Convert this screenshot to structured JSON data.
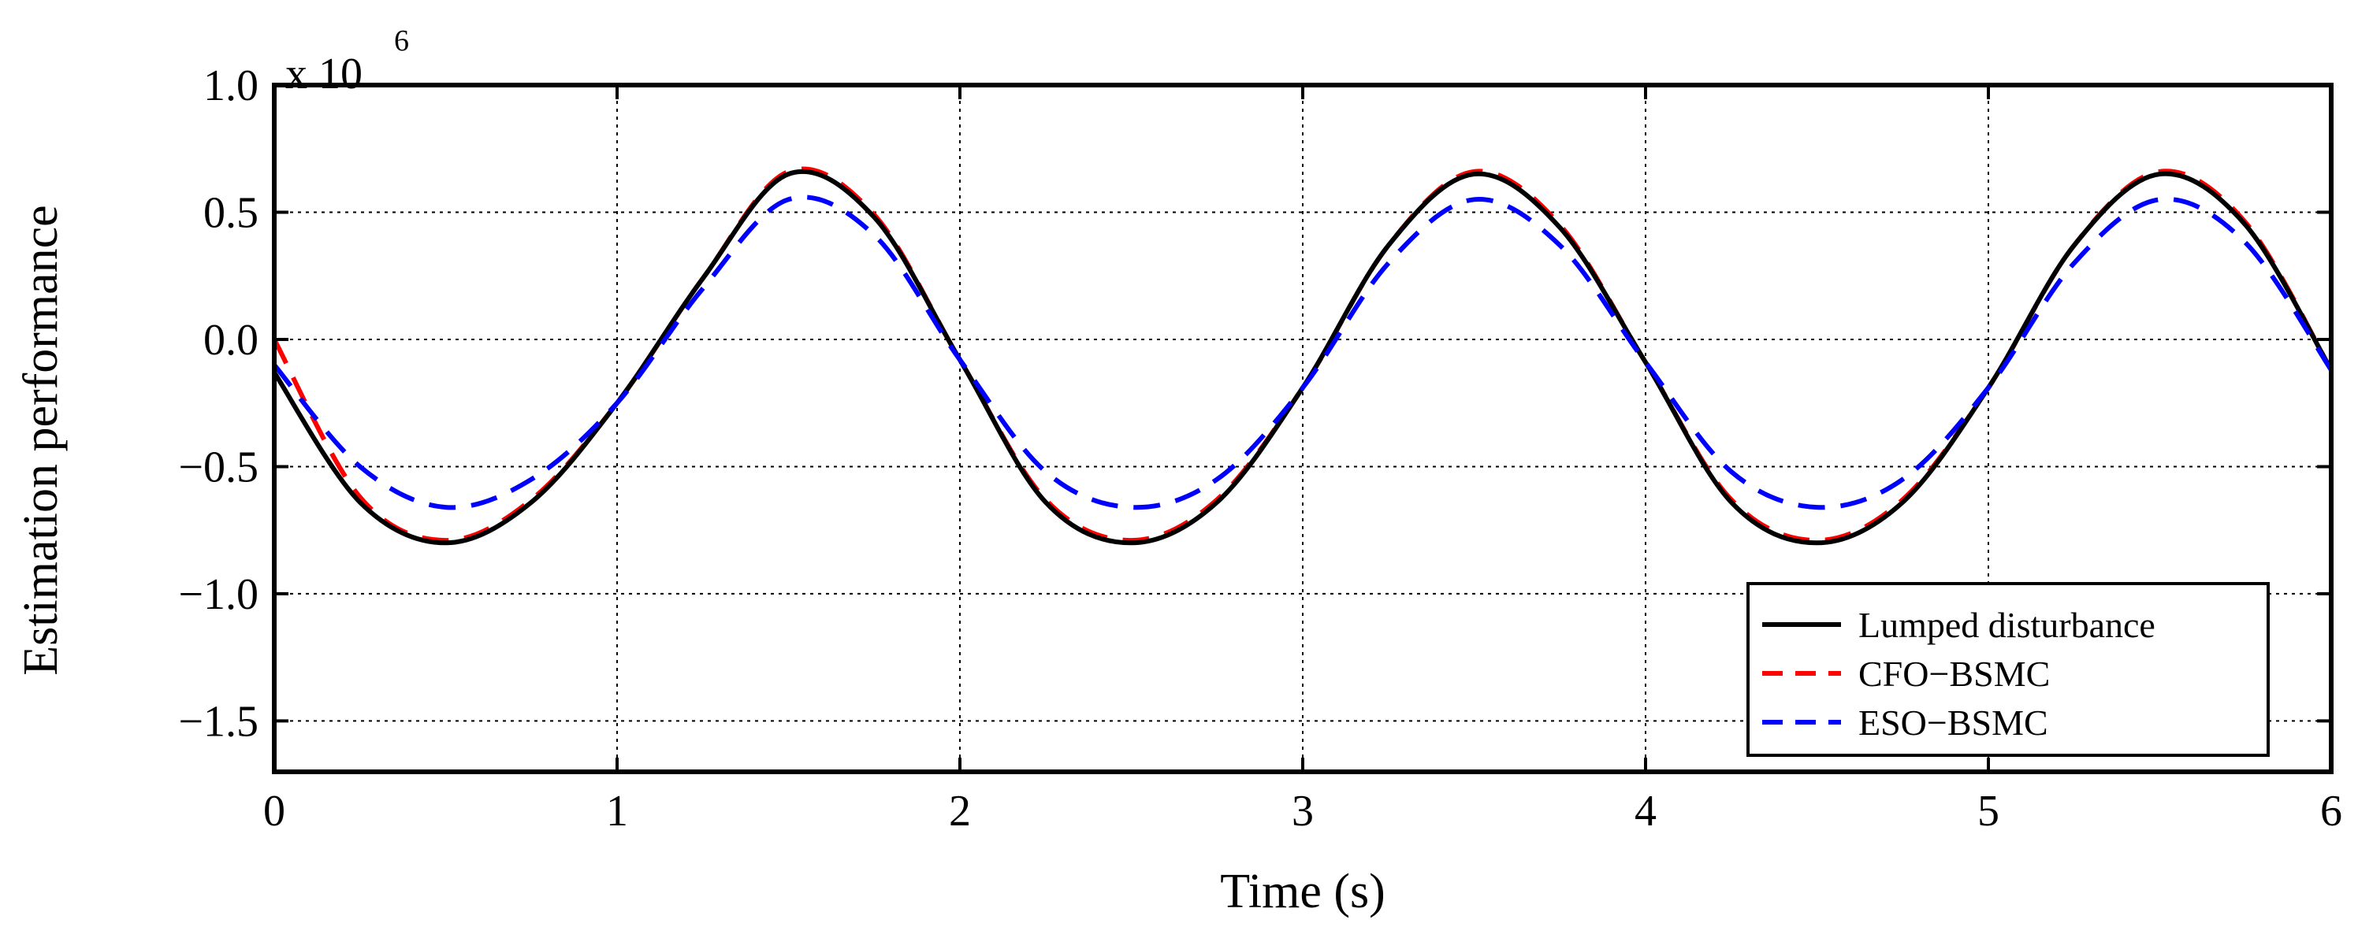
{
  "chart_data": {
    "type": "line",
    "title": "",
    "xlabel": "Time (s)",
    "ylabel": "Estimation performance",
    "y_multiplier": {
      "base": "x 10",
      "exponent": "6"
    },
    "xlim": [
      0,
      6
    ],
    "ylim": [
      -1.7,
      1.0
    ],
    "x_ticks": [
      0,
      1,
      2,
      3,
      4,
      5,
      6
    ],
    "x_tick_labels": [
      "0",
      "1",
      "2",
      "3",
      "4",
      "5",
      "6"
    ],
    "y_ticks": [
      -1.5,
      -1.0,
      -0.5,
      0.0,
      0.5,
      1.0
    ],
    "y_tick_labels": [
      "−1.5",
      "−1.0",
      "−0.5",
      "0.0",
      "0.5",
      "1.0"
    ],
    "grid": true,
    "legend_position": "bottom-right",
    "series": [
      {
        "name": "Lumped disturbance",
        "color": "#000000",
        "dash": "solid",
        "x": [
          0,
          0.25,
          0.5,
          0.75,
          1.0,
          1.25,
          1.5,
          1.75,
          2.0,
          2.25,
          2.5,
          2.75,
          3.0,
          3.25,
          3.5,
          3.75,
          4.0,
          4.25,
          4.5,
          4.75,
          5.0,
          5.25,
          5.5,
          5.75,
          6.0
        ],
        "y": [
          -0.13,
          -0.64,
          -0.8,
          -0.64,
          -0.25,
          0.24,
          0.65,
          0.48,
          -0.08,
          -0.64,
          -0.8,
          -0.64,
          -0.19,
          0.37,
          0.65,
          0.44,
          -0.09,
          -0.64,
          -0.8,
          -0.64,
          -0.19,
          0.37,
          0.65,
          0.45,
          -0.12
        ]
      },
      {
        "name": "CFO−BSMC",
        "color": "#ff0000",
        "dash": "dashed",
        "x": [
          0,
          0.25,
          0.5,
          0.75,
          1.0,
          1.25,
          1.5,
          1.75,
          2.0,
          2.25,
          2.5,
          2.75,
          3.0,
          3.25,
          3.5,
          3.75,
          4.0,
          4.25,
          4.5,
          4.75,
          5.0,
          5.25,
          5.5,
          5.75,
          6.0
        ],
        "y": [
          0.0,
          -0.62,
          -0.79,
          -0.63,
          -0.25,
          0.24,
          0.66,
          0.49,
          -0.08,
          -0.63,
          -0.79,
          -0.63,
          -0.19,
          0.37,
          0.66,
          0.45,
          -0.09,
          -0.63,
          -0.79,
          -0.63,
          -0.19,
          0.37,
          0.66,
          0.46,
          -0.12
        ]
      },
      {
        "name": "ESO−BSMC",
        "color": "#0000ff",
        "dash": "dashed",
        "x": [
          0,
          0.25,
          0.5,
          0.75,
          1.0,
          1.25,
          1.5,
          1.75,
          2.0,
          2.25,
          2.5,
          2.75,
          3.0,
          3.25,
          3.5,
          3.75,
          4.0,
          4.25,
          4.5,
          4.75,
          5.0,
          5.25,
          5.5,
          5.75,
          6.0
        ],
        "y": [
          -0.1,
          -0.5,
          -0.66,
          -0.55,
          -0.25,
          0.2,
          0.55,
          0.41,
          -0.08,
          -0.52,
          -0.66,
          -0.55,
          -0.19,
          0.3,
          0.55,
          0.37,
          -0.09,
          -0.52,
          -0.66,
          -0.55,
          -0.19,
          0.3,
          0.55,
          0.38,
          -0.12
        ]
      }
    ]
  }
}
